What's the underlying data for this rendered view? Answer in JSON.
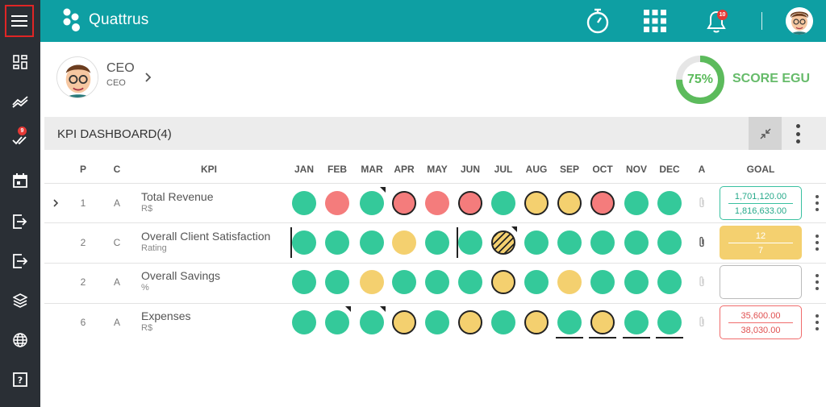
{
  "app": {
    "name": "Quattrus"
  },
  "sidebar": {
    "items": [
      {
        "icon": "menu-icon"
      },
      {
        "icon": "dashboard-icon"
      },
      {
        "icon": "trend-icon"
      },
      {
        "icon": "checks-icon",
        "badge": "9"
      },
      {
        "icon": "calendar-icon"
      },
      {
        "icon": "login-icon"
      },
      {
        "icon": "logout-icon"
      },
      {
        "icon": "layers-icon"
      },
      {
        "icon": "globe-icon"
      },
      {
        "icon": "help-icon"
      }
    ]
  },
  "header": {
    "notifications_badge": "10",
    "icons": [
      "stopwatch-icon",
      "apps-grid-icon",
      "bell-icon",
      "user-avatar-icon"
    ]
  },
  "profile": {
    "name": "CEO",
    "role": "CEO"
  },
  "score": {
    "value": 0.75,
    "percent_label": "75%",
    "label": "SCORE EGU",
    "color": "#5cbb5c"
  },
  "panel": {
    "title": "KPI DASHBOARD(4)"
  },
  "table": {
    "headers": {
      "p": "P",
      "c": "C",
      "kpi": "KPI",
      "a": "A",
      "goal": "GOAL"
    },
    "months": [
      "JAN",
      "FEB",
      "MAR",
      "APR",
      "MAY",
      "JUN",
      "JUL",
      "AUG",
      "SEP",
      "OCT",
      "NOV",
      "DEC"
    ],
    "rows": [
      {
        "p": "1",
        "c": "A",
        "name": "Total Revenue",
        "unit": "R$",
        "expandable": true,
        "statuses": [
          "green",
          "red",
          "green",
          "red",
          "red",
          "red",
          "green",
          "yellow",
          "yellow",
          "red",
          "green",
          "green"
        ],
        "outlined": [
          3,
          5,
          7,
          8,
          9
        ],
        "hatched": [],
        "corner": [
          2
        ],
        "leftbar": [],
        "underline": [],
        "attachment": "faded",
        "goal": {
          "style": "teal",
          "line1": "1,701,120.00",
          "line2": "1,816,633.00"
        }
      },
      {
        "p": "2",
        "c": "C",
        "name": "Overall Client Satisfaction",
        "unit": "Rating",
        "expandable": false,
        "statuses": [
          "green",
          "green",
          "green",
          "yellow",
          "green",
          "green",
          "yellow",
          "green",
          "green",
          "green",
          "green",
          "green"
        ],
        "outlined": [],
        "hatched": [
          6
        ],
        "corner": [
          6
        ],
        "leftbar": [
          0,
          5
        ],
        "underline": [],
        "attachment": "solid",
        "goal": {
          "style": "yellow",
          "line1": "12",
          "line2": "7"
        }
      },
      {
        "p": "2",
        "c": "A",
        "name": "Overall Savings",
        "unit": "%",
        "expandable": false,
        "statuses": [
          "green",
          "green",
          "yellow",
          "green",
          "green",
          "green",
          "yellow",
          "green",
          "yellow",
          "green",
          "green",
          "green"
        ],
        "outlined": [
          6
        ],
        "hatched": [],
        "corner": [],
        "leftbar": [],
        "underline": [],
        "attachment": "faded",
        "goal": {
          "style": "empty",
          "line1": "",
          "line2": ""
        }
      },
      {
        "p": "6",
        "c": "A",
        "name": "Expenses",
        "unit": "R$",
        "expandable": false,
        "statuses": [
          "green",
          "green",
          "green",
          "yellow",
          "green",
          "yellow",
          "green",
          "yellow",
          "green",
          "yellow",
          "green",
          "green"
        ],
        "outlined": [
          3,
          5,
          7,
          9
        ],
        "hatched": [],
        "corner": [
          1,
          2
        ],
        "leftbar": [],
        "underline": [
          8,
          9,
          10,
          11
        ],
        "attachment": "faded",
        "goal": {
          "style": "red",
          "line1": "35,600.00",
          "line2": "38,030.00"
        }
      }
    ]
  },
  "colors": {
    "green": "#34c99a",
    "red": "#f47c7c",
    "yellow": "#f4d06f",
    "teal_header": "#0e9fa3",
    "sidebar": "#2a2f35"
  }
}
